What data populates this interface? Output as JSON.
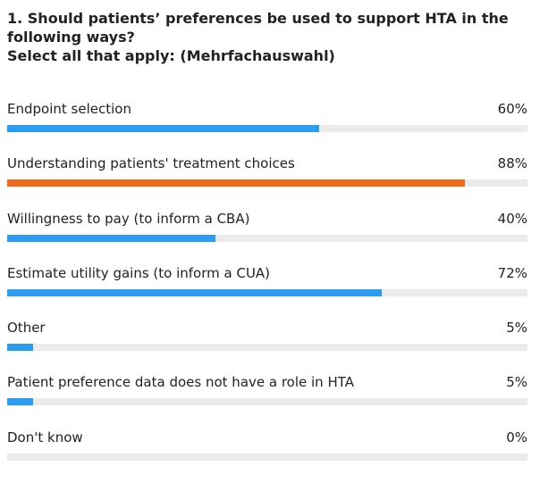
{
  "question": {
    "line1": "1. Should patients’ preferences be used to support HTA in the",
    "line2": "following ways?",
    "line3": "Select all that apply: (Mehrfachauswahl)"
  },
  "colors": {
    "default_bar": "#2b9cf0",
    "highlight_bar": "#f06a1a",
    "track": "#ebebeb"
  },
  "chart_data": {
    "type": "bar",
    "orientation": "horizontal",
    "categories": [
      "Endpoint selection",
      "Understanding patients' treatment choices",
      "Willingness to pay (to inform a CBA)",
      "Estimate utility gains (to inform a CUA)",
      "Other",
      "Patient preference data does not have a role in HTA",
      "Don't know"
    ],
    "values": [
      60,
      88,
      40,
      72,
      5,
      5,
      0
    ],
    "labels": [
      "60%",
      "88%",
      "40%",
      "72%",
      "5%",
      "5%",
      "0%"
    ],
    "highlight_index": 1,
    "xlim": [
      0,
      100
    ],
    "grid": false
  }
}
